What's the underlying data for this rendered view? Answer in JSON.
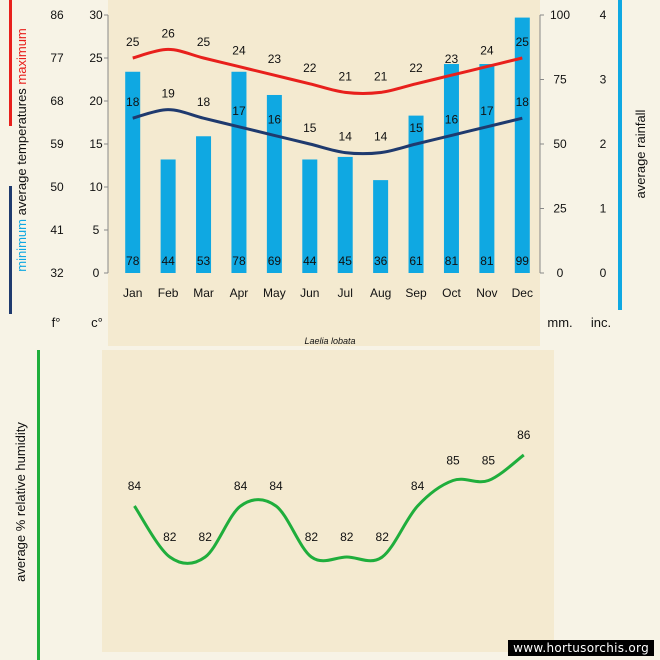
{
  "chart_data": [
    {
      "type": "bar+line",
      "title": "Laelia lobata",
      "categories": [
        "Jan",
        "Feb",
        "Mar",
        "Apr",
        "May",
        "Jun",
        "Jul",
        "Aug",
        "Sep",
        "Oct",
        "Nov",
        "Dec"
      ],
      "rainfall": {
        "name": "average rainfall",
        "unit_labels": [
          "mm.",
          "inc."
        ],
        "values": [
          78,
          44,
          53,
          78,
          69,
          44,
          45,
          36,
          61,
          81,
          81,
          99
        ],
        "color": "#0fa8e2",
        "mm_ticks": [
          0,
          25,
          50,
          75,
          100
        ],
        "inch_ticks": [
          0,
          1,
          2,
          3,
          4
        ],
        "ylim": [
          0,
          100
        ]
      },
      "temperature": {
        "label_words": [
          "minimum",
          "average",
          "temperatures",
          "maximum"
        ],
        "unit_labels": [
          "f°",
          "c°"
        ],
        "celsius_ticks": [
          0,
          5,
          10,
          15,
          20,
          25,
          30
        ],
        "fahrenheit_ticks": [
          32,
          41,
          50,
          59,
          68,
          77,
          86
        ],
        "ylim": [
          0,
          30
        ],
        "series": [
          {
            "name": "maximum",
            "values": [
              25,
              26,
              25,
              24,
              23,
              22,
              21,
              21,
              22,
              23,
              24,
              25
            ],
            "color": "#e8201c"
          },
          {
            "name": "minimum",
            "values": [
              18,
              19,
              18,
              17,
              16,
              15,
              14,
              14,
              15,
              16,
              17,
              18
            ],
            "color": "#1f3a6e"
          }
        ]
      }
    },
    {
      "type": "line",
      "ylabel": "average % relative humidity",
      "categories": [
        "Jan",
        "Feb",
        "Mar",
        "Apr",
        "May",
        "Jun",
        "Jul",
        "Aug",
        "Sep",
        "Oct",
        "Nov",
        "Dec"
      ],
      "values": [
        84,
        82,
        82,
        84,
        84,
        82,
        82,
        82,
        84,
        85,
        85,
        86
      ],
      "color": "#1fae3c"
    }
  ],
  "watermark": "www.hortusorchis.org",
  "colors": {
    "panel": "#f4ead0",
    "max_bracket": "#e8201c",
    "min_bracket": "#1f3a6e",
    "rain_bracket": "#0fa8e2",
    "humidity_bracket": "#1fae3c"
  }
}
